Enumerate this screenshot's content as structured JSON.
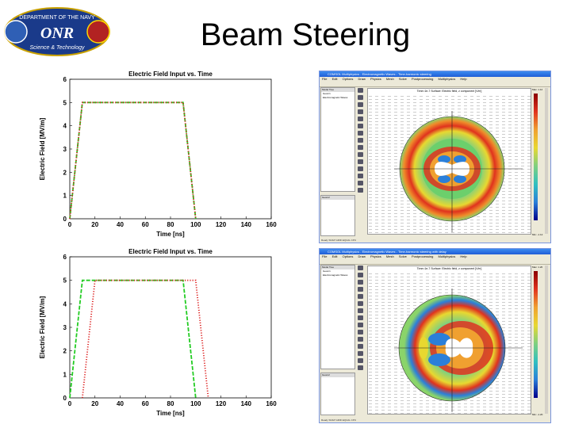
{
  "slide": {
    "title": "Beam Steering"
  },
  "logo": {
    "top_text": "DEPARTMENT OF THE NAVY",
    "center_text": "ONR",
    "bottom_text": "Science & Technology"
  },
  "chart_data": [
    {
      "type": "line",
      "title": "Electric Field Input vs. Time",
      "xlabel": "Time [ns]",
      "ylabel": "Electric Field [MV/m]",
      "xlim": [
        0,
        160
      ],
      "ylim": [
        0,
        6
      ],
      "xticks": [
        "0",
        "20",
        "40",
        "60",
        "80",
        "100",
        "120",
        "140",
        "160"
      ],
      "yticks": [
        "1",
        "2",
        "3",
        "4",
        "5",
        "6"
      ],
      "series": [
        {
          "name": "green",
          "color": "#22cc22",
          "style": "dashed",
          "x": [
            0,
            10,
            90,
            100
          ],
          "y": [
            0,
            5,
            5,
            0
          ]
        },
        {
          "name": "red",
          "color": "#dd2222",
          "style": "dotted",
          "x": [
            0,
            10,
            90,
            100
          ],
          "y": [
            0,
            5,
            5,
            0
          ]
        }
      ]
    },
    {
      "type": "line",
      "title": "Electric Field Input vs. Time",
      "xlabel": "Time [ns]",
      "ylabel": "Electric Field [MV/m]",
      "xlim": [
        0,
        160
      ],
      "ylim": [
        0,
        6
      ],
      "xticks": [
        "0",
        "20",
        "40",
        "60",
        "80",
        "100",
        "120",
        "140",
        "160"
      ],
      "yticks": [
        "1",
        "2",
        "3",
        "4",
        "5",
        "6"
      ],
      "series": [
        {
          "name": "green",
          "color": "#22cc22",
          "style": "dashed",
          "x": [
            0,
            10,
            90,
            100
          ],
          "y": [
            0,
            5,
            5,
            0
          ]
        },
        {
          "name": "red",
          "color": "#dd2222",
          "style": "dotted",
          "x": [
            10,
            20,
            100,
            110
          ],
          "y": [
            0,
            5,
            5,
            0
          ]
        }
      ]
    }
  ],
  "windows": [
    {
      "titlebar": "COMSOL Multiphysics - Electromagnetic Waves - Time-harmonic steering",
      "menu": [
        "File",
        "Edit",
        "Options",
        "Draw",
        "Physics",
        "Mesh",
        "Solve",
        "Postprocessing",
        "Multiphysics",
        "Help"
      ],
      "pane_header": "Model Tree",
      "pane_items": [
        "Geom1",
        "Electromagnetic Waves"
      ],
      "pane2_header": "Geom2",
      "canvas_title": "Time=1e-7  Surface: Electric field, z component [V/m]",
      "colorbar_max": "Max: 1.12",
      "colorbar_min": "Min: -1.12",
      "status": "Ready   SNAP  GRID  EQUAL  CPU"
    },
    {
      "titlebar": "COMSOL Multiphysics - Electromagnetic Waves - Time-harmonic steering with delay",
      "menu": [
        "File",
        "Edit",
        "Options",
        "Draw",
        "Physics",
        "Mesh",
        "Solve",
        "Postprocessing",
        "Multiphysics",
        "Help"
      ],
      "pane_header": "Model Tree",
      "pane_items": [
        "Geom1",
        "Electromagnetic Waves"
      ],
      "pane2_header": "Geom2",
      "canvas_title": "Time=1e-7  Surface: Electric field, z component [V/m]",
      "colorbar_max": "Max: 1.20",
      "colorbar_min": "Min: -1.20",
      "status": "Ready   SNAP  GRID  EQUAL  CPU"
    }
  ],
  "colors": {
    "accent_blue": "#1f5dd6",
    "field_green": "#6ccf6c",
    "field_red": "#e0321e",
    "field_blue": "#2b7fd9"
  }
}
